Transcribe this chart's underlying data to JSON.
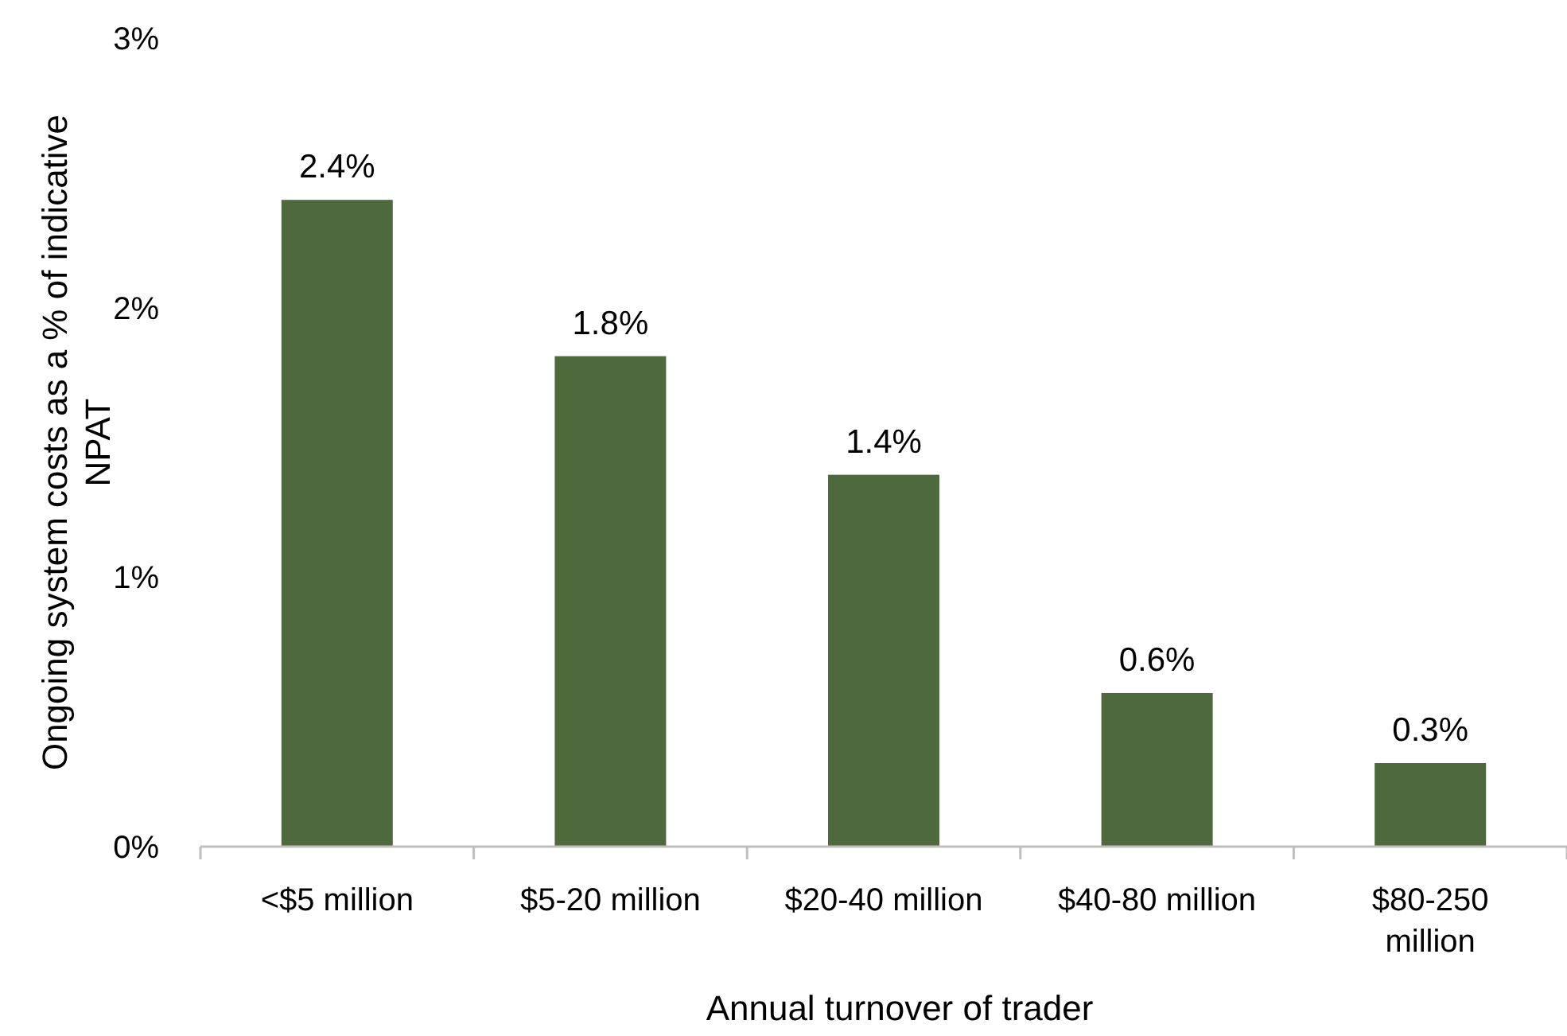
{
  "chart_data": {
    "type": "bar",
    "xlabel": "Annual turnover of trader",
    "ylabel": "Ongoing system costs as a % of indicative NPAT",
    "categories": [
      "<$5 million",
      "$5-20 million",
      "$20-40 million",
      "$40-80 million",
      "$80-250 million"
    ],
    "values": [
      2.4,
      1.82,
      1.38,
      0.57,
      0.31
    ],
    "value_labels": [
      "2.4%",
      "1.8%",
      "1.4%",
      "0.6%",
      "0.3%"
    ],
    "color": "#4e6a3c",
    "ylim": [
      0,
      3
    ],
    "yticks": [
      {
        "value": 0,
        "label": "0%"
      },
      {
        "value": 1,
        "label": "1%"
      },
      {
        "value": 2,
        "label": "2%"
      },
      {
        "value": 3,
        "label": "3%"
      }
    ],
    "grid": false
  }
}
